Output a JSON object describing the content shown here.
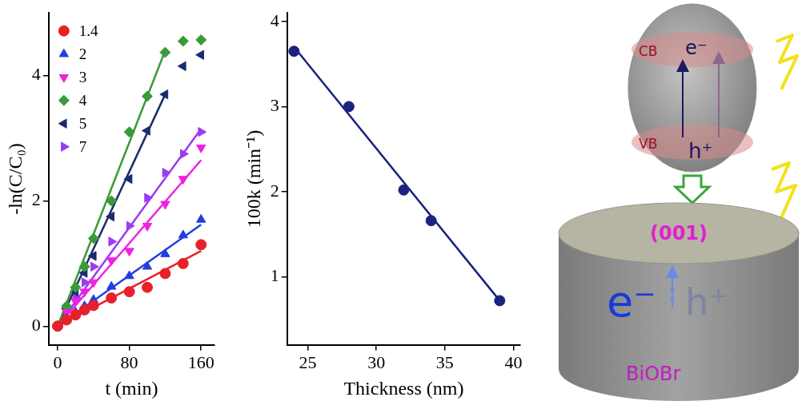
{
  "chart_data": [
    {
      "type": "scatter",
      "x_label": "t (min)",
      "y_label": "-ln(C/C₀)",
      "xlim": [
        -10,
        175
      ],
      "xticks": [
        0,
        80,
        160
      ],
      "ylim": [
        -0.3,
        5
      ],
      "yticks": [
        0,
        2,
        4
      ],
      "grid": false,
      "legend": "upper left",
      "x": [
        0,
        10,
        20,
        30,
        40,
        60,
        80,
        100,
        120,
        140,
        160
      ],
      "series": [
        {
          "name": "1.4",
          "color": "#e8202a",
          "marker": "circle",
          "values": [
            0,
            0.1,
            0.18,
            0.26,
            0.33,
            0.45,
            0.55,
            0.62,
            0.84,
            1.0,
            1.3
          ],
          "fit": {
            "x": [
              0,
              160
            ],
            "values": [
              0,
              1.2
            ]
          }
        },
        {
          "name": "2",
          "color": "#1f3fe0",
          "marker": "triangle-up",
          "values": [
            0,
            0.12,
            0.22,
            0.32,
            0.42,
            0.63,
            0.8,
            0.95,
            1.15,
            1.45,
            1.7
          ],
          "fit": {
            "x": [
              0,
              160
            ],
            "values": [
              0,
              1.62
            ]
          }
        },
        {
          "name": "3",
          "color": "#f020e0",
          "marker": "triangle-down",
          "values": [
            0,
            0.22,
            0.4,
            0.55,
            0.7,
            1.05,
            1.2,
            1.6,
            1.95,
            2.35,
            2.85
          ],
          "fit": {
            "x": [
              0,
              160
            ],
            "values": [
              0,
              2.65
            ]
          }
        },
        {
          "name": "4",
          "color": "#3a9a3a",
          "marker": "diamond",
          "values": [
            0,
            0.32,
            0.62,
            0.95,
            1.4,
            2.0,
            3.1,
            3.67,
            4.37,
            4.55,
            4.57
          ],
          "fit": {
            "x": [
              0,
              120
            ],
            "values": [
              0,
              4.4
            ]
          }
        },
        {
          "name": "5",
          "color": "#1c2a6e",
          "marker": "triangle-left",
          "values": [
            0,
            0.28,
            0.55,
            0.85,
            1.12,
            1.75,
            2.35,
            3.12,
            3.7,
            4.15,
            4.33
          ],
          "fit": {
            "x": [
              0,
              120
            ],
            "values": [
              0,
              3.7
            ]
          }
        },
        {
          "name": "7",
          "color": "#9a3cf0",
          "marker": "triangle-right",
          "values": [
            0,
            0.25,
            0.45,
            0.7,
            0.95,
            1.35,
            1.6,
            2.05,
            2.45,
            2.75,
            3.1
          ],
          "fit": {
            "x": [
              0,
              160
            ],
            "values": [
              0,
              3.15
            ]
          }
        }
      ]
    },
    {
      "type": "scatter",
      "x_label": "Thickness (nm)",
      "y_label": "100k (min⁻¹)",
      "xlim": [
        23.5,
        40.5
      ],
      "xticks": [
        25,
        30,
        35,
        40
      ],
      "ylim": [
        0.2,
        4.1
      ],
      "yticks": [
        1,
        2,
        3,
        4
      ],
      "grid": false,
      "x": [
        24,
        28,
        32,
        34,
        39
      ],
      "values": [
        3.65,
        3.0,
        2.02,
        1.66,
        0.72
      ],
      "color": "#1a237e",
      "marker": "circle",
      "fit": {
        "x": [
          24,
          39
        ],
        "values": [
          3.7,
          0.72
        ]
      }
    }
  ],
  "diagram": {
    "particle": {
      "cb": "CB",
      "vb": "VB",
      "electron": "e⁻",
      "hole": "h⁺"
    },
    "plate": {
      "facet": "(001)",
      "electron": "e⁻",
      "hole": "h⁺",
      "material": "BiOBr"
    }
  }
}
